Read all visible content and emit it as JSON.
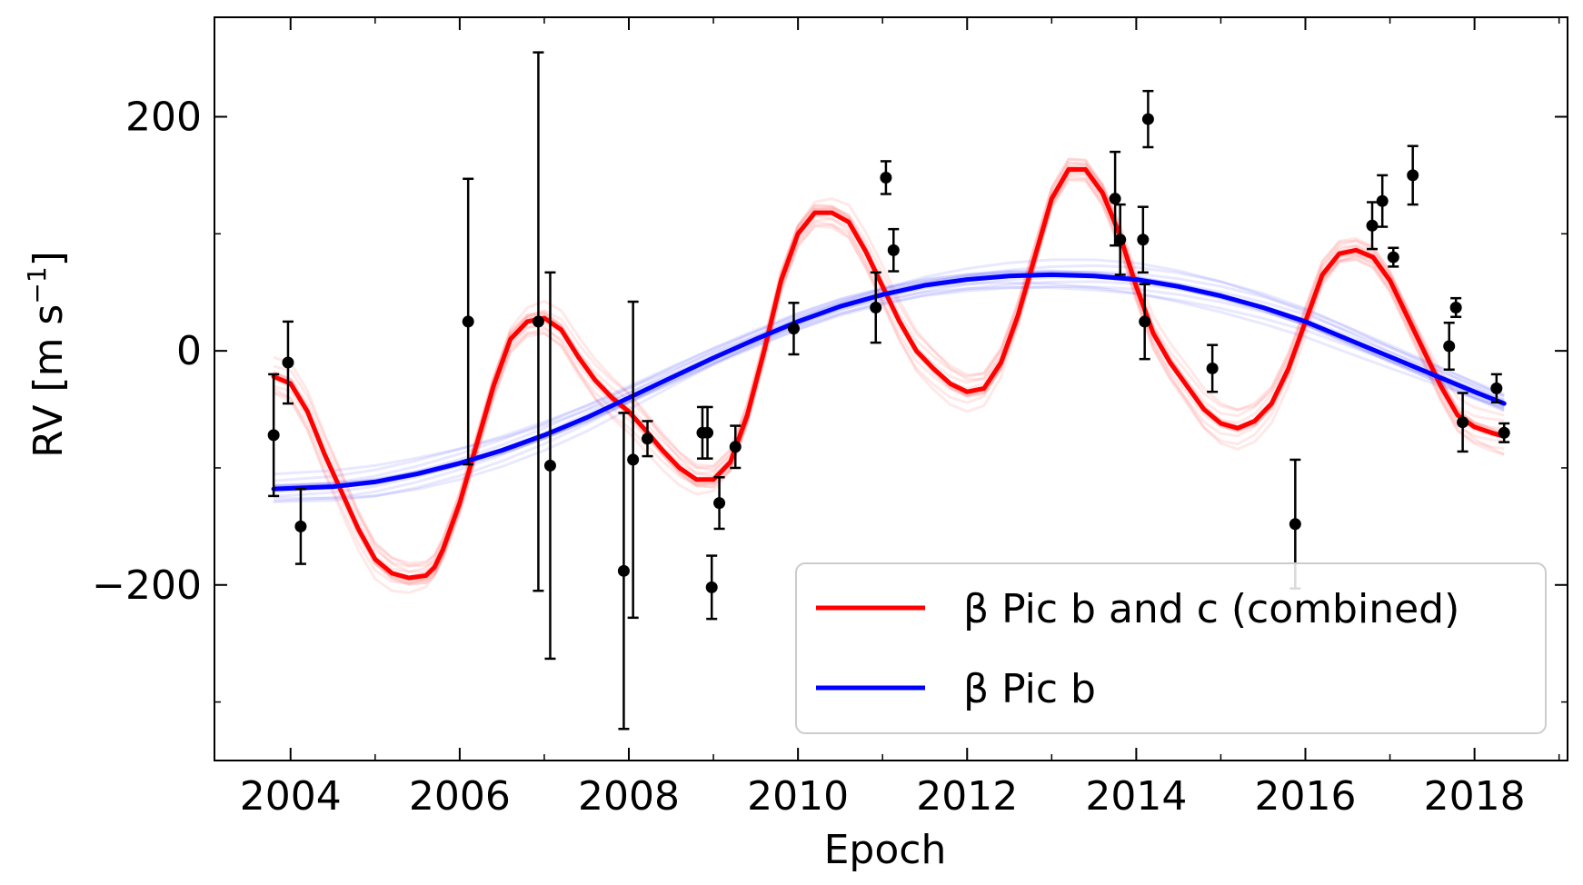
{
  "chart_data": {
    "type": "line",
    "title": "",
    "xlabel": "Epoch",
    "ylabel_main": "RV [m s",
    "ylabel_exp": "−1",
    "ylabel_close": "]",
    "xlim": [
      2003.1,
      2019.1
    ],
    "ylim": [
      -350,
      285
    ],
    "xticks": [
      2004,
      2006,
      2008,
      2010,
      2012,
      2014,
      2016,
      2018
    ],
    "xtick_labels": [
      "2004",
      "2006",
      "2008",
      "2010",
      "2012",
      "2014",
      "2016",
      "2018"
    ],
    "yticks": [
      -200,
      0,
      200
    ],
    "ytick_labels": [
      "−200",
      "0",
      "200"
    ],
    "legend_placement": "lower-right",
    "series": [
      {
        "name": "β Pic b and c (combined)",
        "color": "#ff0000",
        "x": [
          2003.8,
          2004.0,
          2004.2,
          2004.4,
          2004.6,
          2004.8,
          2005.0,
          2005.2,
          2005.4,
          2005.6,
          2005.7,
          2005.8,
          2006.0,
          2006.2,
          2006.4,
          2006.6,
          2006.8,
          2007.0,
          2007.2,
          2007.4,
          2007.6,
          2007.8,
          2008.0,
          2008.2,
          2008.4,
          2008.6,
          2008.8,
          2009.0,
          2009.2,
          2009.4,
          2009.6,
          2009.8,
          2010.0,
          2010.2,
          2010.4,
          2010.6,
          2010.8,
          2011.0,
          2011.2,
          2011.4,
          2011.6,
          2011.8,
          2012.0,
          2012.2,
          2012.4,
          2012.6,
          2012.8,
          2013.0,
          2013.2,
          2013.4,
          2013.6,
          2013.8,
          2014.0,
          2014.2,
          2014.4,
          2014.6,
          2014.8,
          2015.0,
          2015.2,
          2015.4,
          2015.6,
          2015.8,
          2016.0,
          2016.2,
          2016.4,
          2016.6,
          2016.8,
          2017.0,
          2017.2,
          2017.4,
          2017.6,
          2017.8,
          2018.0,
          2018.2,
          2018.35
        ],
        "y": [
          -22,
          -28,
          -52,
          -88,
          -120,
          -152,
          -178,
          -190,
          -194,
          -192,
          -185,
          -170,
          -130,
          -80,
          -30,
          10,
          25,
          28,
          18,
          -5,
          -25,
          -40,
          -52,
          -68,
          -85,
          -100,
          -110,
          -110,
          -95,
          -55,
          0,
          60,
          100,
          118,
          118,
          110,
          85,
          55,
          25,
          0,
          -15,
          -28,
          -35,
          -32,
          -10,
          30,
          80,
          130,
          155,
          155,
          135,
          100,
          55,
          15,
          -10,
          -30,
          -50,
          -62,
          -66,
          -60,
          -45,
          -15,
          25,
          65,
          83,
          86,
          80,
          60,
          30,
          0,
          -30,
          -55,
          -65,
          -70,
          -73
        ]
      },
      {
        "name": "β Pic b",
        "color": "#0000ff",
        "x": [
          2003.8,
          2004.5,
          2005.0,
          2005.5,
          2006.0,
          2006.5,
          2007.0,
          2007.5,
          2008.0,
          2008.5,
          2009.0,
          2009.5,
          2010.0,
          2010.5,
          2011.0,
          2011.5,
          2012.0,
          2012.5,
          2013.0,
          2013.5,
          2014.0,
          2014.5,
          2015.0,
          2015.5,
          2016.0,
          2016.5,
          2017.0,
          2017.5,
          2018.0,
          2018.35
        ],
        "y": [
          -118,
          -116,
          -112,
          -105,
          -96,
          -85,
          -72,
          -57,
          -40,
          -23,
          -6,
          10,
          25,
          38,
          48,
          56,
          61,
          64,
          65,
          64,
          61,
          55,
          47,
          37,
          25,
          10,
          -5,
          -20,
          -35,
          -45
        ]
      }
    ],
    "observations": {
      "x": [
        2003.8,
        2003.97,
        2004.12,
        2006.1,
        2006.93,
        2007.07,
        2007.94,
        2008.05,
        2008.22,
        2008.87,
        2008.93,
        2008.98,
        2009.07,
        2009.26,
        2009.95,
        2010.92,
        2011.04,
        2011.13,
        2013.75,
        2013.81,
        2014.08,
        2014.1,
        2014.14,
        2014.9,
        2015.88,
        2016.79,
        2016.91,
        2017.04,
        2017.27,
        2017.7,
        2017.78,
        2017.86,
        2018.26,
        2018.35
      ],
      "y": [
        -72,
        -10,
        -150,
        25,
        25,
        -98,
        -188,
        -93,
        -75,
        -70,
        -70,
        -202,
        -130,
        -82,
        19,
        37,
        148,
        86,
        130,
        95,
        95,
        25,
        198,
        -15,
        -148,
        107,
        128,
        80,
        150,
        4,
        37,
        -61,
        -32,
        -70
      ],
      "err": [
        52,
        35,
        32,
        122,
        230,
        165,
        135,
        135,
        15,
        22,
        22,
        27,
        22,
        18,
        22,
        30,
        14,
        18,
        40,
        30,
        28,
        32,
        24,
        20,
        55,
        20,
        22,
        8,
        25,
        20,
        8,
        25,
        12,
        8
      ]
    }
  }
}
